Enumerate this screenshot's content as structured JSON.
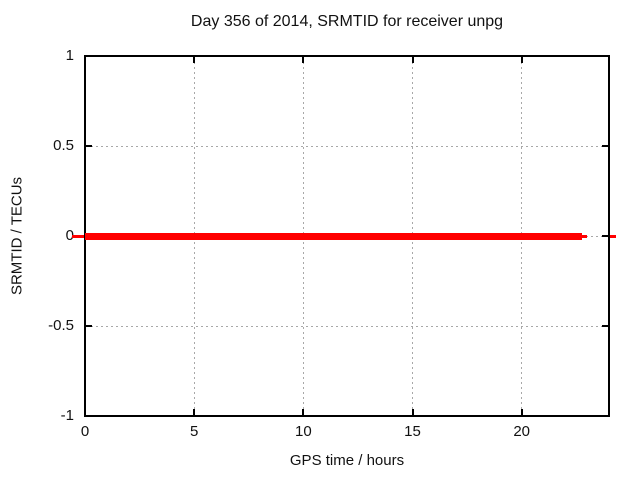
{
  "figure": {
    "background": "#ffffff"
  },
  "chart_data": {
    "type": "line",
    "title": "Day 356 of 2014, SRMTID for receiver unpg",
    "xlabel": "GPS time / hours",
    "ylabel": "SRMTID / TECUs",
    "xlim": [
      0,
      24
    ],
    "ylim": [
      -1,
      1
    ],
    "x_ticks": [
      0,
      5,
      10,
      15,
      20
    ],
    "y_ticks": [
      1,
      0.5,
      0,
      -0.5,
      -1
    ],
    "grid": true,
    "grid_color": "#a8a8a8",
    "axis_color": "#000000",
    "text_color": "#111111",
    "legend": "none",
    "series": [
      {
        "name": "SRMTID",
        "color": "#ff0000",
        "style": "thick-horizontal-line",
        "x": [
          0,
          22.75
        ],
        "y": [
          0,
          0
        ],
        "thin_tail_x_end": 23.0
      }
    ],
    "zero_axis_outer_ticks": {
      "color": "#ff0000",
      "y_value": 0
    }
  }
}
